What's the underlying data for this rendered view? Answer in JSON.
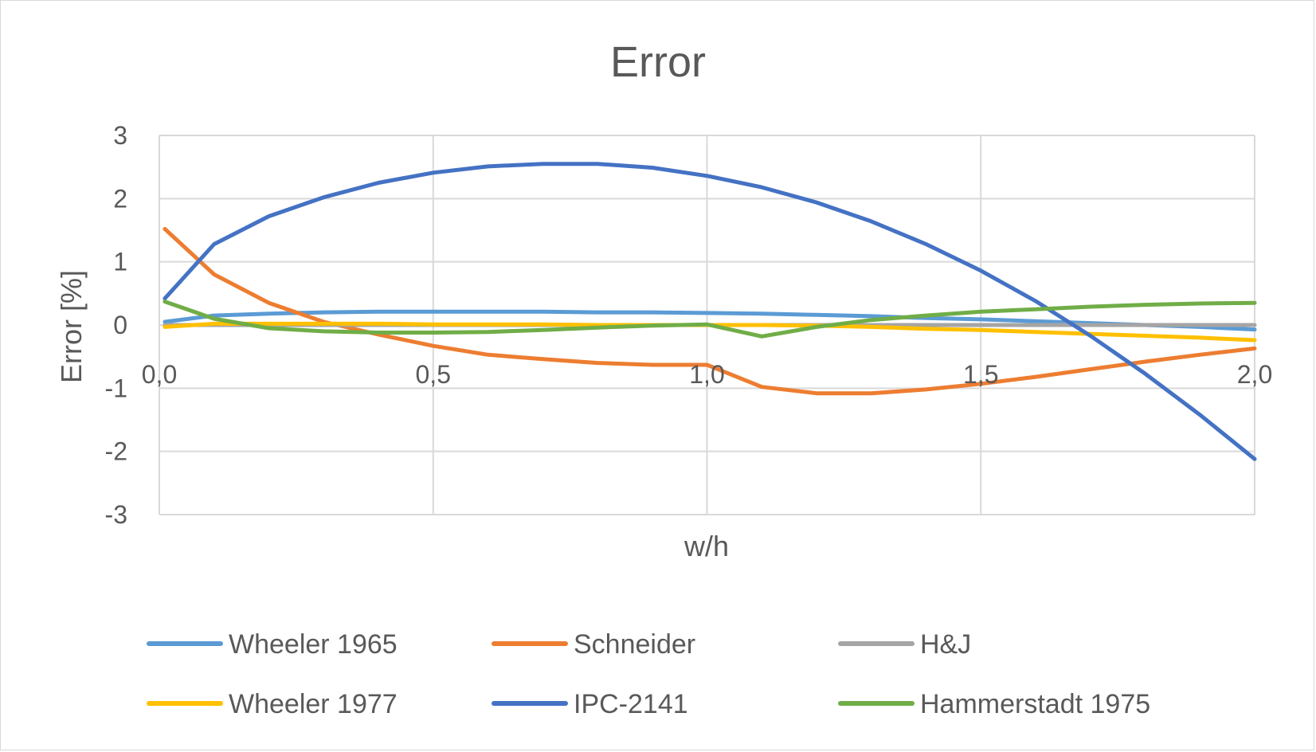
{
  "chart_data": {
    "type": "line",
    "title": "Error",
    "xlabel": "w/h",
    "ylabel": "Error [%]",
    "xlim": [
      0,
      2
    ],
    "ylim": [
      -3,
      3
    ],
    "x_ticks": [
      0,
      0.5,
      1,
      1.5,
      2
    ],
    "x_tick_labels": [
      "0,0",
      "0,5",
      "1,0",
      "1,5",
      "2,0"
    ],
    "y_ticks": [
      -3,
      -2,
      -1,
      0,
      1,
      2,
      3
    ],
    "y_tick_labels": [
      "-3",
      "-2",
      "-1",
      "0",
      "1",
      "2",
      "3"
    ],
    "grid": true,
    "legend_position": "bottom",
    "x": [
      0.01,
      0.1,
      0.2,
      0.3,
      0.4,
      0.5,
      0.6,
      0.7,
      0.8,
      0.9,
      1.0,
      1.1,
      1.2,
      1.3,
      1.4,
      1.5,
      1.6,
      1.7,
      1.8,
      1.9,
      2.0
    ],
    "series": [
      {
        "name": "Wheeler 1965",
        "color": "#5b9bd5",
        "values": [
          0.05,
          0.15,
          0.18,
          0.2,
          0.21,
          0.21,
          0.21,
          0.21,
          0.2,
          0.2,
          0.19,
          0.18,
          0.16,
          0.14,
          0.11,
          0.09,
          0.06,
          0.03,
          0.0,
          -0.03,
          -0.07
        ]
      },
      {
        "name": "Schneider",
        "color": "#ed7d31",
        "values": [
          1.52,
          0.8,
          0.35,
          0.05,
          -0.15,
          -0.33,
          -0.47,
          -0.54,
          -0.6,
          -0.63,
          -0.63,
          -0.98,
          -1.08,
          -1.08,
          -1.02,
          -0.93,
          -0.82,
          -0.7,
          -0.58,
          -0.47,
          -0.37
        ]
      },
      {
        "name": "H&J",
        "color": "#a5a5a5",
        "values": [
          0.0,
          0.0,
          0.0,
          0.0,
          0.0,
          0.0,
          0.0,
          0.0,
          0.0,
          0.0,
          0.0,
          0.0,
          0.0,
          0.0,
          0.0,
          0.0,
          0.0,
          0.0,
          0.0,
          0.0,
          0.0
        ]
      },
      {
        "name": "Wheeler 1977",
        "color": "#ffc000",
        "values": [
          -0.03,
          0.02,
          0.02,
          0.02,
          0.02,
          0.01,
          0.01,
          0.01,
          0.0,
          0.0,
          0.0,
          0.0,
          -0.01,
          -0.03,
          -0.06,
          -0.08,
          -0.11,
          -0.14,
          -0.17,
          -0.2,
          -0.24
        ]
      },
      {
        "name": "IPC-2141",
        "color": "#4472c4",
        "values": [
          0.42,
          1.28,
          1.72,
          2.02,
          2.25,
          2.41,
          2.51,
          2.55,
          2.55,
          2.49,
          2.36,
          2.18,
          1.94,
          1.64,
          1.28,
          0.86,
          0.38,
          -0.17,
          -0.77,
          -1.42,
          -2.12
        ]
      },
      {
        "name": "Hammerstadt 1975",
        "color": "#70ad47",
        "values": [
          0.37,
          0.1,
          -0.05,
          -0.1,
          -0.12,
          -0.12,
          -0.11,
          -0.08,
          -0.04,
          -0.01,
          0.01,
          -0.18,
          -0.03,
          0.08,
          0.15,
          0.21,
          0.25,
          0.29,
          0.32,
          0.34,
          0.35
        ]
      }
    ]
  }
}
